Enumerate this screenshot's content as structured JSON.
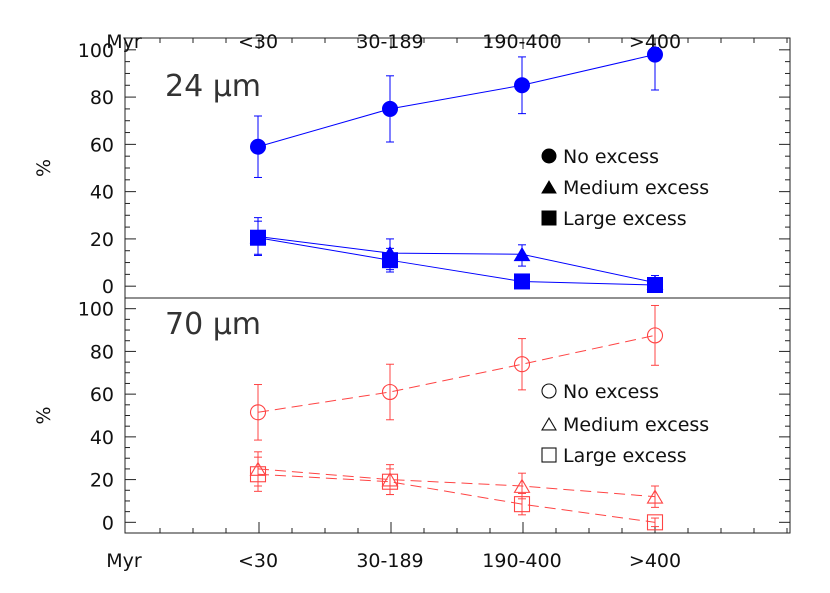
{
  "chart_data": [
    {
      "type": "line",
      "panel_label": "24 μm",
      "ylabel": "%",
      "ylim": [
        -5,
        105
      ],
      "yticks": [
        0,
        20,
        40,
        60,
        80,
        100
      ],
      "age_axis_label": "Myr",
      "categories": [
        "<30",
        "30-189",
        "190-400",
        ">400"
      ],
      "marker_style": "filled",
      "line_style": "solid",
      "color": "#0000ff",
      "series": [
        {
          "name": "No excess",
          "marker": "circle",
          "values": [
            59,
            75,
            85,
            98
          ],
          "err_low": [
            13,
            14,
            12,
            15
          ],
          "err_high": [
            13,
            14,
            12,
            3
          ]
        },
        {
          "name": "Medium excess",
          "marker": "triangle",
          "values": [
            21,
            14,
            13.5,
            1.5
          ],
          "err_low": [
            8,
            7,
            5,
            2
          ],
          "err_high": [
            8,
            6,
            4,
            3
          ]
        },
        {
          "name": "Large excess",
          "marker": "square",
          "values": [
            20.5,
            11,
            2,
            0.5
          ],
          "err_low": [
            7,
            5,
            2,
            1
          ],
          "err_high": [
            7,
            5,
            2,
            1
          ]
        }
      ]
    },
    {
      "type": "line",
      "panel_label": "70 μm",
      "ylabel": "%",
      "ylim": [
        -5,
        105
      ],
      "yticks": [
        0,
        20,
        40,
        60,
        80,
        100
      ],
      "age_axis_label": "Myr",
      "categories": [
        "<30",
        "30-189",
        "190-400",
        ">400"
      ],
      "marker_style": "open",
      "line_style": "dashed",
      "color": "#ff4444",
      "series": [
        {
          "name": "No excess",
          "marker": "circle",
          "values": [
            51.5,
            61,
            74,
            87.5
          ],
          "err_low": [
            13,
            13,
            12,
            14
          ],
          "err_high": [
            13,
            13,
            12,
            14
          ]
        },
        {
          "name": "Medium excess",
          "marker": "triangle",
          "values": [
            25,
            20,
            17,
            12
          ],
          "err_low": [
            8,
            7,
            6,
            5
          ],
          "err_high": [
            8,
            7,
            6,
            5
          ]
        },
        {
          "name": "Large excess",
          "marker": "square",
          "values": [
            22.5,
            19,
            8.5,
            0
          ],
          "err_low": [
            8,
            6,
            5,
            2
          ],
          "err_high": [
            8,
            6,
            5,
            2
          ]
        }
      ]
    }
  ]
}
